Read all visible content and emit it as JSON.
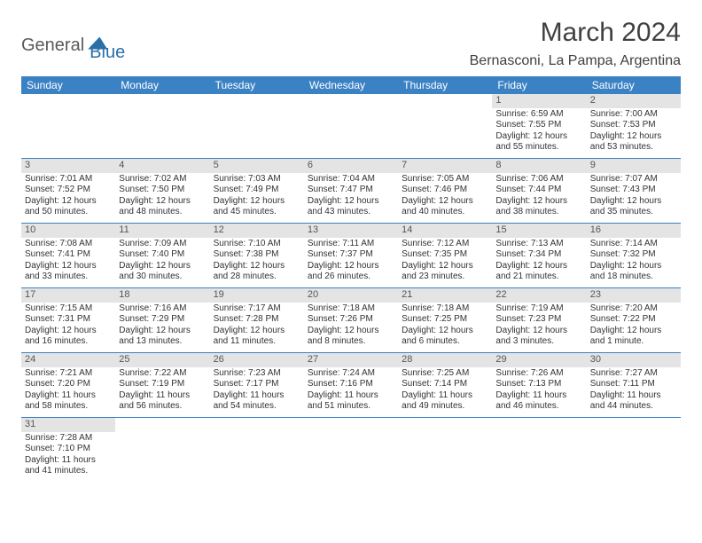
{
  "logo": {
    "general": "General",
    "blue": "Blue"
  },
  "title": "March 2024",
  "location": "Bernasconi, La Pampa, Argentina",
  "weekdays": [
    "Sunday",
    "Monday",
    "Tuesday",
    "Wednesday",
    "Thursday",
    "Friday",
    "Saturday"
  ],
  "colors": {
    "header_bg": "#3b82c4",
    "header_text": "#ffffff",
    "daynum_bg": "#e4e4e4",
    "row_border": "#3b82c4",
    "logo_blue": "#2b6fa8",
    "logo_gray": "#5a5a5a"
  },
  "weeks": [
    [
      {
        "empty": true
      },
      {
        "empty": true
      },
      {
        "empty": true
      },
      {
        "empty": true
      },
      {
        "empty": true
      },
      {
        "num": "1",
        "sunrise": "Sunrise: 6:59 AM",
        "sunset": "Sunset: 7:55 PM",
        "day1": "Daylight: 12 hours",
        "day2": "and 55 minutes."
      },
      {
        "num": "2",
        "sunrise": "Sunrise: 7:00 AM",
        "sunset": "Sunset: 7:53 PM",
        "day1": "Daylight: 12 hours",
        "day2": "and 53 minutes."
      }
    ],
    [
      {
        "num": "3",
        "sunrise": "Sunrise: 7:01 AM",
        "sunset": "Sunset: 7:52 PM",
        "day1": "Daylight: 12 hours",
        "day2": "and 50 minutes."
      },
      {
        "num": "4",
        "sunrise": "Sunrise: 7:02 AM",
        "sunset": "Sunset: 7:50 PM",
        "day1": "Daylight: 12 hours",
        "day2": "and 48 minutes."
      },
      {
        "num": "5",
        "sunrise": "Sunrise: 7:03 AM",
        "sunset": "Sunset: 7:49 PM",
        "day1": "Daylight: 12 hours",
        "day2": "and 45 minutes."
      },
      {
        "num": "6",
        "sunrise": "Sunrise: 7:04 AM",
        "sunset": "Sunset: 7:47 PM",
        "day1": "Daylight: 12 hours",
        "day2": "and 43 minutes."
      },
      {
        "num": "7",
        "sunrise": "Sunrise: 7:05 AM",
        "sunset": "Sunset: 7:46 PM",
        "day1": "Daylight: 12 hours",
        "day2": "and 40 minutes."
      },
      {
        "num": "8",
        "sunrise": "Sunrise: 7:06 AM",
        "sunset": "Sunset: 7:44 PM",
        "day1": "Daylight: 12 hours",
        "day2": "and 38 minutes."
      },
      {
        "num": "9",
        "sunrise": "Sunrise: 7:07 AM",
        "sunset": "Sunset: 7:43 PM",
        "day1": "Daylight: 12 hours",
        "day2": "and 35 minutes."
      }
    ],
    [
      {
        "num": "10",
        "sunrise": "Sunrise: 7:08 AM",
        "sunset": "Sunset: 7:41 PM",
        "day1": "Daylight: 12 hours",
        "day2": "and 33 minutes."
      },
      {
        "num": "11",
        "sunrise": "Sunrise: 7:09 AM",
        "sunset": "Sunset: 7:40 PM",
        "day1": "Daylight: 12 hours",
        "day2": "and 30 minutes."
      },
      {
        "num": "12",
        "sunrise": "Sunrise: 7:10 AM",
        "sunset": "Sunset: 7:38 PM",
        "day1": "Daylight: 12 hours",
        "day2": "and 28 minutes."
      },
      {
        "num": "13",
        "sunrise": "Sunrise: 7:11 AM",
        "sunset": "Sunset: 7:37 PM",
        "day1": "Daylight: 12 hours",
        "day2": "and 26 minutes."
      },
      {
        "num": "14",
        "sunrise": "Sunrise: 7:12 AM",
        "sunset": "Sunset: 7:35 PM",
        "day1": "Daylight: 12 hours",
        "day2": "and 23 minutes."
      },
      {
        "num": "15",
        "sunrise": "Sunrise: 7:13 AM",
        "sunset": "Sunset: 7:34 PM",
        "day1": "Daylight: 12 hours",
        "day2": "and 21 minutes."
      },
      {
        "num": "16",
        "sunrise": "Sunrise: 7:14 AM",
        "sunset": "Sunset: 7:32 PM",
        "day1": "Daylight: 12 hours",
        "day2": "and 18 minutes."
      }
    ],
    [
      {
        "num": "17",
        "sunrise": "Sunrise: 7:15 AM",
        "sunset": "Sunset: 7:31 PM",
        "day1": "Daylight: 12 hours",
        "day2": "and 16 minutes."
      },
      {
        "num": "18",
        "sunrise": "Sunrise: 7:16 AM",
        "sunset": "Sunset: 7:29 PM",
        "day1": "Daylight: 12 hours",
        "day2": "and 13 minutes."
      },
      {
        "num": "19",
        "sunrise": "Sunrise: 7:17 AM",
        "sunset": "Sunset: 7:28 PM",
        "day1": "Daylight: 12 hours",
        "day2": "and 11 minutes."
      },
      {
        "num": "20",
        "sunrise": "Sunrise: 7:18 AM",
        "sunset": "Sunset: 7:26 PM",
        "day1": "Daylight: 12 hours",
        "day2": "and 8 minutes."
      },
      {
        "num": "21",
        "sunrise": "Sunrise: 7:18 AM",
        "sunset": "Sunset: 7:25 PM",
        "day1": "Daylight: 12 hours",
        "day2": "and 6 minutes."
      },
      {
        "num": "22",
        "sunrise": "Sunrise: 7:19 AM",
        "sunset": "Sunset: 7:23 PM",
        "day1": "Daylight: 12 hours",
        "day2": "and 3 minutes."
      },
      {
        "num": "23",
        "sunrise": "Sunrise: 7:20 AM",
        "sunset": "Sunset: 7:22 PM",
        "day1": "Daylight: 12 hours",
        "day2": "and 1 minute."
      }
    ],
    [
      {
        "num": "24",
        "sunrise": "Sunrise: 7:21 AM",
        "sunset": "Sunset: 7:20 PM",
        "day1": "Daylight: 11 hours",
        "day2": "and 58 minutes."
      },
      {
        "num": "25",
        "sunrise": "Sunrise: 7:22 AM",
        "sunset": "Sunset: 7:19 PM",
        "day1": "Daylight: 11 hours",
        "day2": "and 56 minutes."
      },
      {
        "num": "26",
        "sunrise": "Sunrise: 7:23 AM",
        "sunset": "Sunset: 7:17 PM",
        "day1": "Daylight: 11 hours",
        "day2": "and 54 minutes."
      },
      {
        "num": "27",
        "sunrise": "Sunrise: 7:24 AM",
        "sunset": "Sunset: 7:16 PM",
        "day1": "Daylight: 11 hours",
        "day2": "and 51 minutes."
      },
      {
        "num": "28",
        "sunrise": "Sunrise: 7:25 AM",
        "sunset": "Sunset: 7:14 PM",
        "day1": "Daylight: 11 hours",
        "day2": "and 49 minutes."
      },
      {
        "num": "29",
        "sunrise": "Sunrise: 7:26 AM",
        "sunset": "Sunset: 7:13 PM",
        "day1": "Daylight: 11 hours",
        "day2": "and 46 minutes."
      },
      {
        "num": "30",
        "sunrise": "Sunrise: 7:27 AM",
        "sunset": "Sunset: 7:11 PM",
        "day1": "Daylight: 11 hours",
        "day2": "and 44 minutes."
      }
    ],
    [
      {
        "num": "31",
        "sunrise": "Sunrise: 7:28 AM",
        "sunset": "Sunset: 7:10 PM",
        "day1": "Daylight: 11 hours",
        "day2": "and 41 minutes."
      },
      {
        "empty": true
      },
      {
        "empty": true
      },
      {
        "empty": true
      },
      {
        "empty": true
      },
      {
        "empty": true
      },
      {
        "empty": true
      }
    ]
  ]
}
